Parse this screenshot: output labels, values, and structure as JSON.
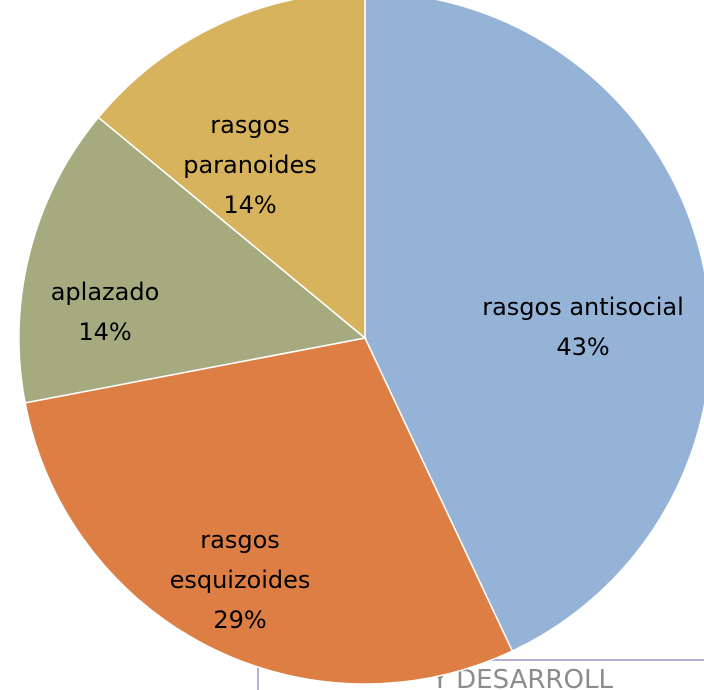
{
  "chart_data": {
    "type": "pie",
    "categories": [
      "rasgos antisocial",
      "rasgos esquizoides",
      "aplazado",
      "rasgos paranoides"
    ],
    "values": [
      43,
      29,
      14,
      14
    ],
    "value_labels": [
      "43%",
      "29%",
      "14%",
      "14%"
    ],
    "colors": [
      "#95b3d7",
      "#dd7f45",
      "#a5ab7e",
      "#d8b35e"
    ]
  },
  "footer": {
    "text": "Y DESARROLL"
  }
}
